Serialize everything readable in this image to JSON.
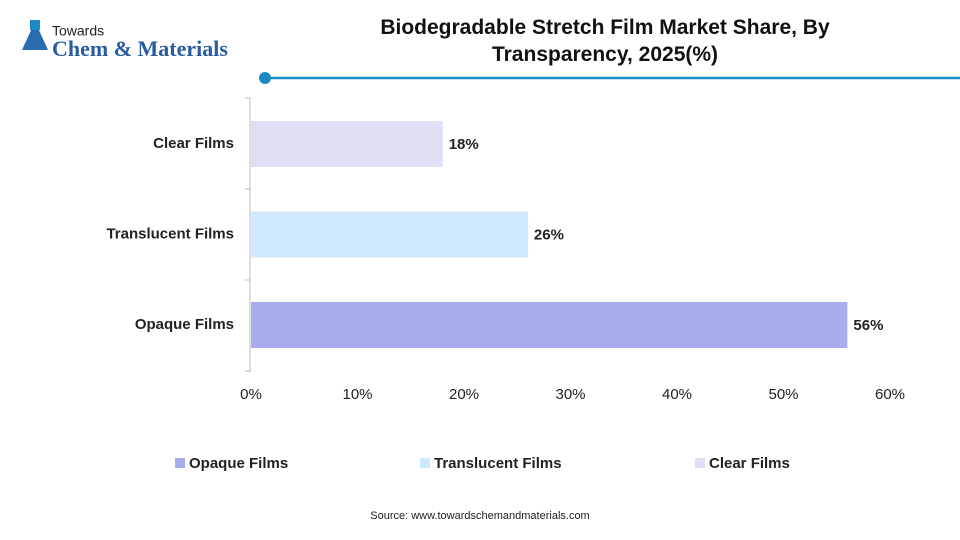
{
  "logo": {
    "line1": "Towards",
    "line2": "Chem & Materials"
  },
  "chart_data": {
    "type": "bar",
    "orientation": "horizontal",
    "title": "Biodegradable Stretch Film Market Share, By Transparency, 2025(%)",
    "categories": [
      "Opaque Films",
      "Translucent Films",
      "Clear Films"
    ],
    "values": [
      56,
      26,
      18
    ],
    "value_labels": [
      "56%",
      "26%",
      "18%"
    ],
    "colors": [
      "#a9acec",
      "#cfe8fd",
      "#dde0f5"
    ],
    "xlim": [
      0,
      60
    ],
    "xticks": [
      {
        "value": 0,
        "label": "0%"
      },
      {
        "value": 10,
        "label": "10%"
      },
      {
        "value": 20,
        "label": "20%"
      },
      {
        "value": 30,
        "label": "30%"
      },
      {
        "value": 40,
        "label": "40%"
      },
      {
        "value": 50,
        "label": "50%"
      },
      {
        "value": 60,
        "label": "60%"
      }
    ],
    "legend": "bottom",
    "source": "Source: www.towardschemandmaterials.com"
  }
}
